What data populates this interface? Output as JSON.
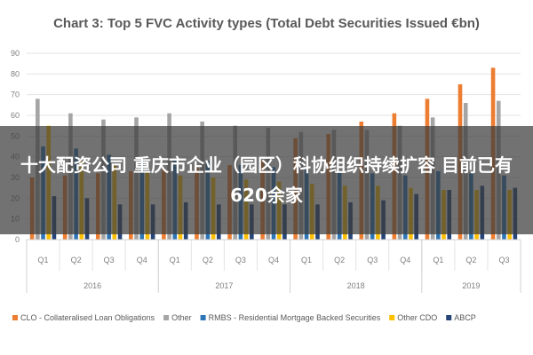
{
  "chart_data": {
    "type": "bar",
    "title": "Chart 3: Top 5 FVC Activity types (Total Debt Securities Issued €bn)",
    "categories": [
      "Q1",
      "Q2",
      "Q3",
      "Q4",
      "Q1",
      "Q2",
      "Q3",
      "Q4",
      "Q1",
      "Q2",
      "Q3",
      "Q4",
      "Q1",
      "Q2",
      "Q3"
    ],
    "groups": [
      {
        "label": "2016",
        "count": 4
      },
      {
        "label": "2017",
        "count": 4
      },
      {
        "label": "2018",
        "count": 4
      },
      {
        "label": "2019",
        "count": 3
      }
    ],
    "ylim": [
      0,
      90
    ],
    "yticks": [
      0,
      10,
      20,
      30,
      40,
      50,
      60,
      70,
      80,
      90
    ],
    "grid": true,
    "legend_position": "bottom",
    "series": [
      {
        "name": "CLO - Collateralised Loan Obligations",
        "color": "#ed7d31",
        "values": [
          30,
          31,
          32,
          33,
          34,
          35,
          36,
          38,
          49,
          51,
          57,
          61,
          68,
          75,
          83
        ]
      },
      {
        "name": "Other",
        "color": "#a5a5a5",
        "values": [
          68,
          61,
          58,
          59,
          61,
          57,
          55,
          54,
          52,
          53,
          53,
          55,
          59,
          66,
          67
        ]
      },
      {
        "name": "RMBS - Residential Mortgage Backed Securities",
        "color": "#2e75b6",
        "values": [
          45,
          44,
          41,
          40,
          39,
          38,
          36,
          35,
          34,
          33,
          32,
          31,
          33,
          32,
          31
        ]
      },
      {
        "name": "Other CDO",
        "color": "#ffc000",
        "values": [
          55,
          38,
          36,
          33,
          31,
          30,
          29,
          28,
          27,
          26,
          26,
          25,
          24,
          24,
          24
        ]
      },
      {
        "name": "ABCP",
        "color": "#264478",
        "values": [
          21,
          20,
          17,
          17,
          18,
          17,
          17,
          17,
          17,
          18,
          19,
          22,
          24,
          26,
          25
        ]
      }
    ]
  },
  "overlay": {
    "text": "十大配资公司 重庆市企业（园区）科协组织持续扩容 目前已有620余家"
  }
}
